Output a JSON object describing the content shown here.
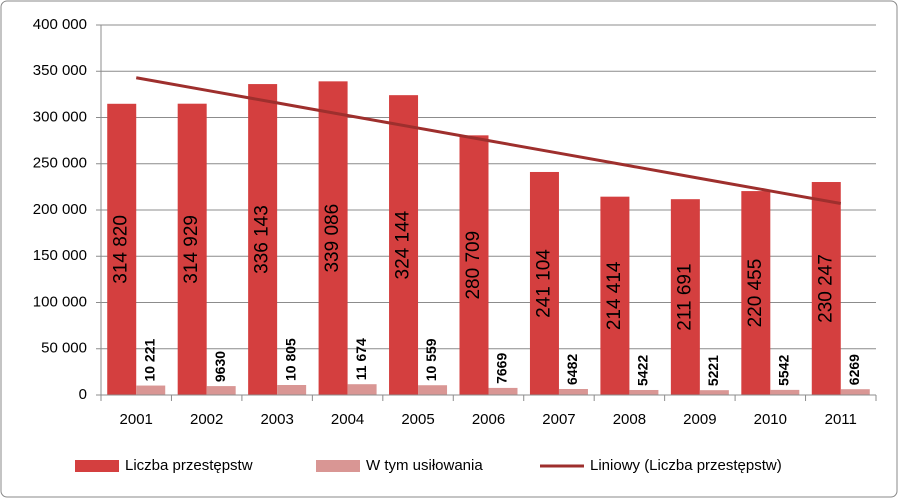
{
  "chart_data": {
    "type": "bar",
    "categories": [
      "2001",
      "2002",
      "2003",
      "2004",
      "2005",
      "2006",
      "2007",
      "2008",
      "2009",
      "2010",
      "2011"
    ],
    "series": [
      {
        "name": "Liczba przestępstw",
        "color": "#d43f3f",
        "values": [
          314820,
          314929,
          336143,
          339086,
          324144,
          280709,
          241104,
          214414,
          211691,
          220455,
          230247
        ],
        "value_labels": [
          "314 820",
          "314 929",
          "336 143",
          "339 086",
          "324 144",
          "280 709",
          "241 104",
          "214 414",
          "211 691",
          "220 455",
          "230 247"
        ]
      },
      {
        "name": "W tym usiłowania",
        "color": "#d99694",
        "values": [
          10221,
          9630,
          10805,
          11674,
          10559,
          7669,
          6482,
          5422,
          5221,
          5542,
          6269
        ],
        "value_labels": [
          "10 221",
          "9630",
          "10 805",
          "11 674",
          "10 559",
          "7669",
          "6482",
          "5422",
          "5221",
          "5542",
          "6269"
        ]
      },
      {
        "name": "Liniowy (Liczba przestępstw)",
        "color": "#9e2f2d",
        "type": "line",
        "values": [
          343000,
          329400,
          315800,
          302200,
          288600,
          275000,
          261400,
          247800,
          234200,
          220600,
          207000
        ]
      }
    ],
    "ylim": [
      0,
      400000
    ],
    "yticks": [
      {
        "value": 0,
        "label": "0"
      },
      {
        "value": 50000,
        "label": "50 000"
      },
      {
        "value": 100000,
        "label": "100 000"
      },
      {
        "value": 150000,
        "label": "150 000"
      },
      {
        "value": 200000,
        "label": "200 000"
      },
      {
        "value": 250000,
        "label": "250 000"
      },
      {
        "value": 300000,
        "label": "300 000"
      },
      {
        "value": 350000,
        "label": "350 000"
      },
      {
        "value": 400000,
        "label": "400 000"
      }
    ],
    "grid": true,
    "legend": "bottom"
  }
}
